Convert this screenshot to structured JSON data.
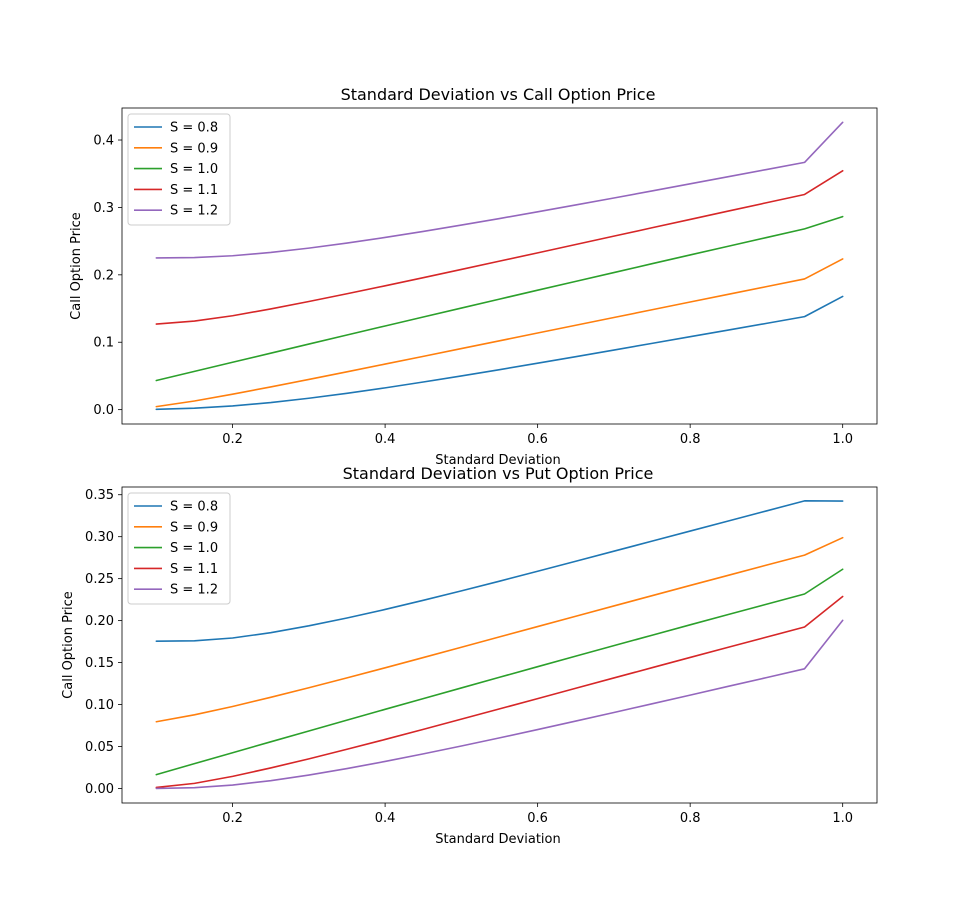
{
  "colors": [
    "#1f77b4",
    "#ff7f0e",
    "#2ca02c",
    "#d62728",
    "#9467bd"
  ],
  "chart_data": [
    {
      "type": "line",
      "title": "Standard Deviation vs Call Option Price",
      "xlabel": "Standard Deviation",
      "ylabel": "Call Option Price",
      "xlim": [
        0.055,
        1.045
      ],
      "ylim": [
        -0.0213,
        0.4475
      ],
      "xticks": [
        0.2,
        0.4,
        0.6,
        0.8,
        1.0
      ],
      "xtick_labels": [
        "0.2",
        "0.4",
        "0.6",
        "0.8",
        "1.0"
      ],
      "yticks": [
        0.0,
        0.1,
        0.2,
        0.3,
        0.4
      ],
      "ytick_labels": [
        "0.0",
        "0.1",
        "0.2",
        "0.3",
        "0.4"
      ],
      "legend_position": "top-left",
      "x": [
        0.1,
        0.15,
        0.2,
        0.25,
        0.3,
        0.35,
        0.4,
        0.45,
        0.5,
        0.55,
        0.6,
        0.65,
        0.7,
        0.75,
        0.8,
        0.85,
        0.9,
        0.95,
        1.0
      ],
      "series": [
        {
          "name": "S = 0.8",
          "values": [
            0.0005,
            0.0021,
            0.0055,
            0.0105,
            0.0169,
            0.0242,
            0.0323,
            0.041,
            0.05,
            0.0593,
            0.0689,
            0.0786,
            0.0884,
            0.0983,
            0.1082,
            0.1181,
            0.128,
            0.138,
            0.1679
          ]
        },
        {
          "name": "S = 0.9",
          "values": [
            0.0045,
            0.0128,
            0.0229,
            0.0337,
            0.0448,
            0.0561,
            0.0676,
            0.079,
            0.0906,
            0.1021,
            0.1137,
            0.1252,
            0.1367,
            0.1482,
            0.1597,
            0.1711,
            0.1825,
            0.1939,
            0.2236
          ]
        },
        {
          "name": "S = 1.0",
          "values": [
            0.0432,
            0.0568,
            0.0703,
            0.0838,
            0.0973,
            0.1107,
            0.1241,
            0.1374,
            0.1507,
            0.164,
            0.1772,
            0.1903,
            0.2034,
            0.2165,
            0.2295,
            0.2424,
            0.2553,
            0.2682,
            0.2864
          ]
        },
        {
          "name": "S = 1.1",
          "values": [
            0.1269,
            0.1314,
            0.1393,
            0.1494,
            0.1604,
            0.1719,
            0.1837,
            0.1958,
            0.208,
            0.2203,
            0.2326,
            0.245,
            0.2574,
            0.2698,
            0.2822,
            0.2946,
            0.3069,
            0.3192,
            0.3544
          ]
        },
        {
          "name": "S = 1.2",
          "values": [
            0.2251,
            0.2256,
            0.2283,
            0.2332,
            0.2396,
            0.2471,
            0.2555,
            0.2644,
            0.2738,
            0.2835,
            0.2935,
            0.3037,
            0.314,
            0.3245,
            0.335,
            0.3456,
            0.3562,
            0.3668,
            0.4263
          ]
        }
      ]
    },
    {
      "type": "line",
      "title": "Standard Deviation vs Put Option Price",
      "xlabel": "Standard Deviation",
      "ylabel": "Call Option Price",
      "xlim": [
        0.055,
        1.045
      ],
      "ylim": [
        -0.0173,
        0.3592
      ],
      "xticks": [
        0.2,
        0.4,
        0.6,
        0.8,
        1.0
      ],
      "xtick_labels": [
        "0.2",
        "0.4",
        "0.6",
        "0.8",
        "1.0"
      ],
      "yticks": [
        0.0,
        0.05,
        0.1,
        0.15,
        0.2,
        0.25,
        0.3,
        0.35
      ],
      "ytick_labels": [
        "0.00",
        "0.05",
        "0.10",
        "0.15",
        "0.20",
        "0.25",
        "0.30",
        "0.35"
      ],
      "legend_position": "top-left",
      "x": [
        0.1,
        0.15,
        0.2,
        0.25,
        0.3,
        0.35,
        0.4,
        0.45,
        0.5,
        0.55,
        0.6,
        0.65,
        0.7,
        0.75,
        0.8,
        0.85,
        0.9,
        0.95,
        1.0
      ],
      "series": [
        {
          "name": "S = 0.8",
          "values": [
            0.1755,
            0.1759,
            0.1793,
            0.1856,
            0.1938,
            0.2031,
            0.2133,
            0.2242,
            0.2354,
            0.247,
            0.2588,
            0.2707,
            0.2827,
            0.2947,
            0.3067,
            0.3187,
            0.3307,
            0.3427,
            0.3425
          ]
        },
        {
          "name": "S = 0.9",
          "values": [
            0.0795,
            0.0878,
            0.0977,
            0.1086,
            0.12,
            0.1318,
            0.1438,
            0.156,
            0.1683,
            0.1806,
            0.1929,
            0.2052,
            0.2175,
            0.2297,
            0.2419,
            0.254,
            0.2661,
            0.278,
            0.2988
          ]
        },
        {
          "name": "S = 1.0",
          "values": [
            0.0165,
            0.0296,
            0.0426,
            0.0556,
            0.0685,
            0.0814,
            0.0943,
            0.1071,
            0.1198,
            0.1325,
            0.1451,
            0.1577,
            0.1702,
            0.1826,
            0.195,
            0.2073,
            0.2195,
            0.2317,
            0.2612
          ]
        },
        {
          "name": "S = 1.1",
          "values": [
            0.0012,
            0.0061,
            0.0144,
            0.0245,
            0.0353,
            0.0467,
            0.0584,
            0.0704,
            0.0826,
            0.0948,
            0.1071,
            0.1194,
            0.1317,
            0.1439,
            0.1561,
            0.1683,
            0.1803,
            0.1924,
            0.2288
          ]
        },
        {
          "name": "S = 1.2",
          "values": [
            0.0001,
            0.001,
            0.0041,
            0.0093,
            0.016,
            0.0237,
            0.0322,
            0.0412,
            0.0506,
            0.0603,
            0.0702,
            0.0803,
            0.0905,
            0.1009,
            0.1112,
            0.1217,
            0.1321,
            0.1426,
            0.2003
          ]
        }
      ]
    }
  ]
}
